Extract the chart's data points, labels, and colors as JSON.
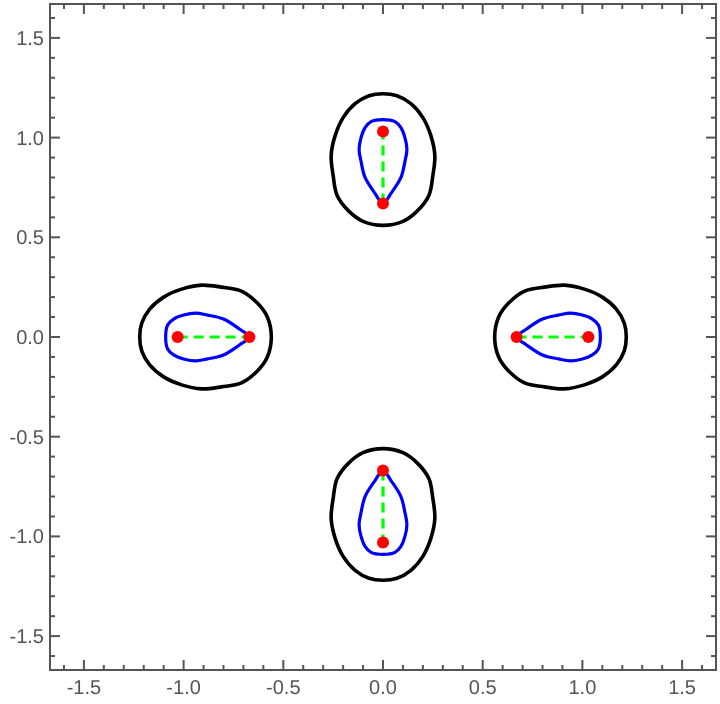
{
  "chart_data": {
    "type": "line",
    "xlim": [
      -1.67,
      1.67
    ],
    "ylim": [
      -1.67,
      1.67
    ],
    "xticks": [
      {
        "value": -1.6,
        "label": null
      },
      {
        "value": -1.5,
        "label": "-1.5"
      },
      {
        "value": -1.4,
        "label": null
      },
      {
        "value": -1.3,
        "label": null
      },
      {
        "value": -1.2,
        "label": null
      },
      {
        "value": -1.1,
        "label": null
      },
      {
        "value": -1.0,
        "label": "-1.0"
      },
      {
        "value": -0.9,
        "label": null
      },
      {
        "value": -0.8,
        "label": null
      },
      {
        "value": -0.7,
        "label": null
      },
      {
        "value": -0.6,
        "label": null
      },
      {
        "value": -0.5,
        "label": "-0.5"
      },
      {
        "value": -0.4,
        "label": null
      },
      {
        "value": -0.3,
        "label": null
      },
      {
        "value": -0.2,
        "label": null
      },
      {
        "value": -0.1,
        "label": null
      },
      {
        "value": 0,
        "label": "0.0"
      },
      {
        "value": 0.1,
        "label": null
      },
      {
        "value": 0.2,
        "label": null
      },
      {
        "value": 0.3,
        "label": null
      },
      {
        "value": 0.4,
        "label": null
      },
      {
        "value": 0.5,
        "label": "0.5"
      },
      {
        "value": 0.6,
        "label": null
      },
      {
        "value": 0.7,
        "label": null
      },
      {
        "value": 0.8,
        "label": null
      },
      {
        "value": 0.9,
        "label": null
      },
      {
        "value": 1.0,
        "label": "1.0"
      },
      {
        "value": 1.1,
        "label": null
      },
      {
        "value": 1.2,
        "label": null
      },
      {
        "value": 1.3,
        "label": null
      },
      {
        "value": 1.4,
        "label": null
      },
      {
        "value": 1.5,
        "label": "1.5"
      },
      {
        "value": 1.6,
        "label": null
      }
    ],
    "yticks": [
      {
        "value": -1.6,
        "label": null
      },
      {
        "value": -1.5,
        "label": "-1.5"
      },
      {
        "value": -1.4,
        "label": null
      },
      {
        "value": -1.3,
        "label": null
      },
      {
        "value": -1.2,
        "label": null
      },
      {
        "value": -1.1,
        "label": null
      },
      {
        "value": -1.0,
        "label": "-1.0"
      },
      {
        "value": -0.9,
        "label": null
      },
      {
        "value": -0.8,
        "label": null
      },
      {
        "value": -0.7,
        "label": null
      },
      {
        "value": -0.6,
        "label": null
      },
      {
        "value": -0.5,
        "label": "-0.5"
      },
      {
        "value": -0.4,
        "label": null
      },
      {
        "value": -0.3,
        "label": null
      },
      {
        "value": -0.2,
        "label": null
      },
      {
        "value": -0.1,
        "label": null
      },
      {
        "value": 0,
        "label": "0.0"
      },
      {
        "value": 0.1,
        "label": null
      },
      {
        "value": 0.2,
        "label": null
      },
      {
        "value": 0.3,
        "label": null
      },
      {
        "value": 0.4,
        "label": null
      },
      {
        "value": 0.5,
        "label": "0.5"
      },
      {
        "value": 0.6,
        "label": null
      },
      {
        "value": 0.7,
        "label": null
      },
      {
        "value": 0.8,
        "label": null
      },
      {
        "value": 0.9,
        "label": null
      },
      {
        "value": 1.0,
        "label": "1.0"
      },
      {
        "value": 1.1,
        "label": null
      },
      {
        "value": 1.2,
        "label": null
      },
      {
        "value": 1.3,
        "label": null
      },
      {
        "value": 1.4,
        "label": null
      },
      {
        "value": 1.5,
        "label": "1.5"
      },
      {
        "value": 1.6,
        "label": null
      }
    ],
    "series": [
      {
        "color": "#00ff00",
        "line_style": "dashed",
        "x": [
          0.67,
          1.03
        ],
        "values": [
          0,
          0
        ]
      },
      {
        "color": "#00ff00",
        "line_style": "dashed",
        "x": [
          -1.03,
          -0.67
        ],
        "values": [
          0,
          0
        ]
      },
      {
        "color": "#00ff00",
        "line_style": "dashed",
        "x": [
          0,
          0
        ],
        "values": [
          0.67,
          1.03
        ]
      },
      {
        "color": "#00ff00",
        "line_style": "dashed",
        "x": [
          0,
          0
        ],
        "values": [
          -0.67,
          -1.03
        ]
      },
      {
        "type": "scatter",
        "marker": "circle",
        "color": "#ff0000",
        "x": [
          0.67,
          1.03,
          -0.67,
          -1.03,
          0,
          0,
          0,
          0
        ],
        "values": [
          0,
          0,
          0,
          0,
          0.67,
          1.03,
          -0.67,
          -1.03
        ]
      }
    ]
  }
}
